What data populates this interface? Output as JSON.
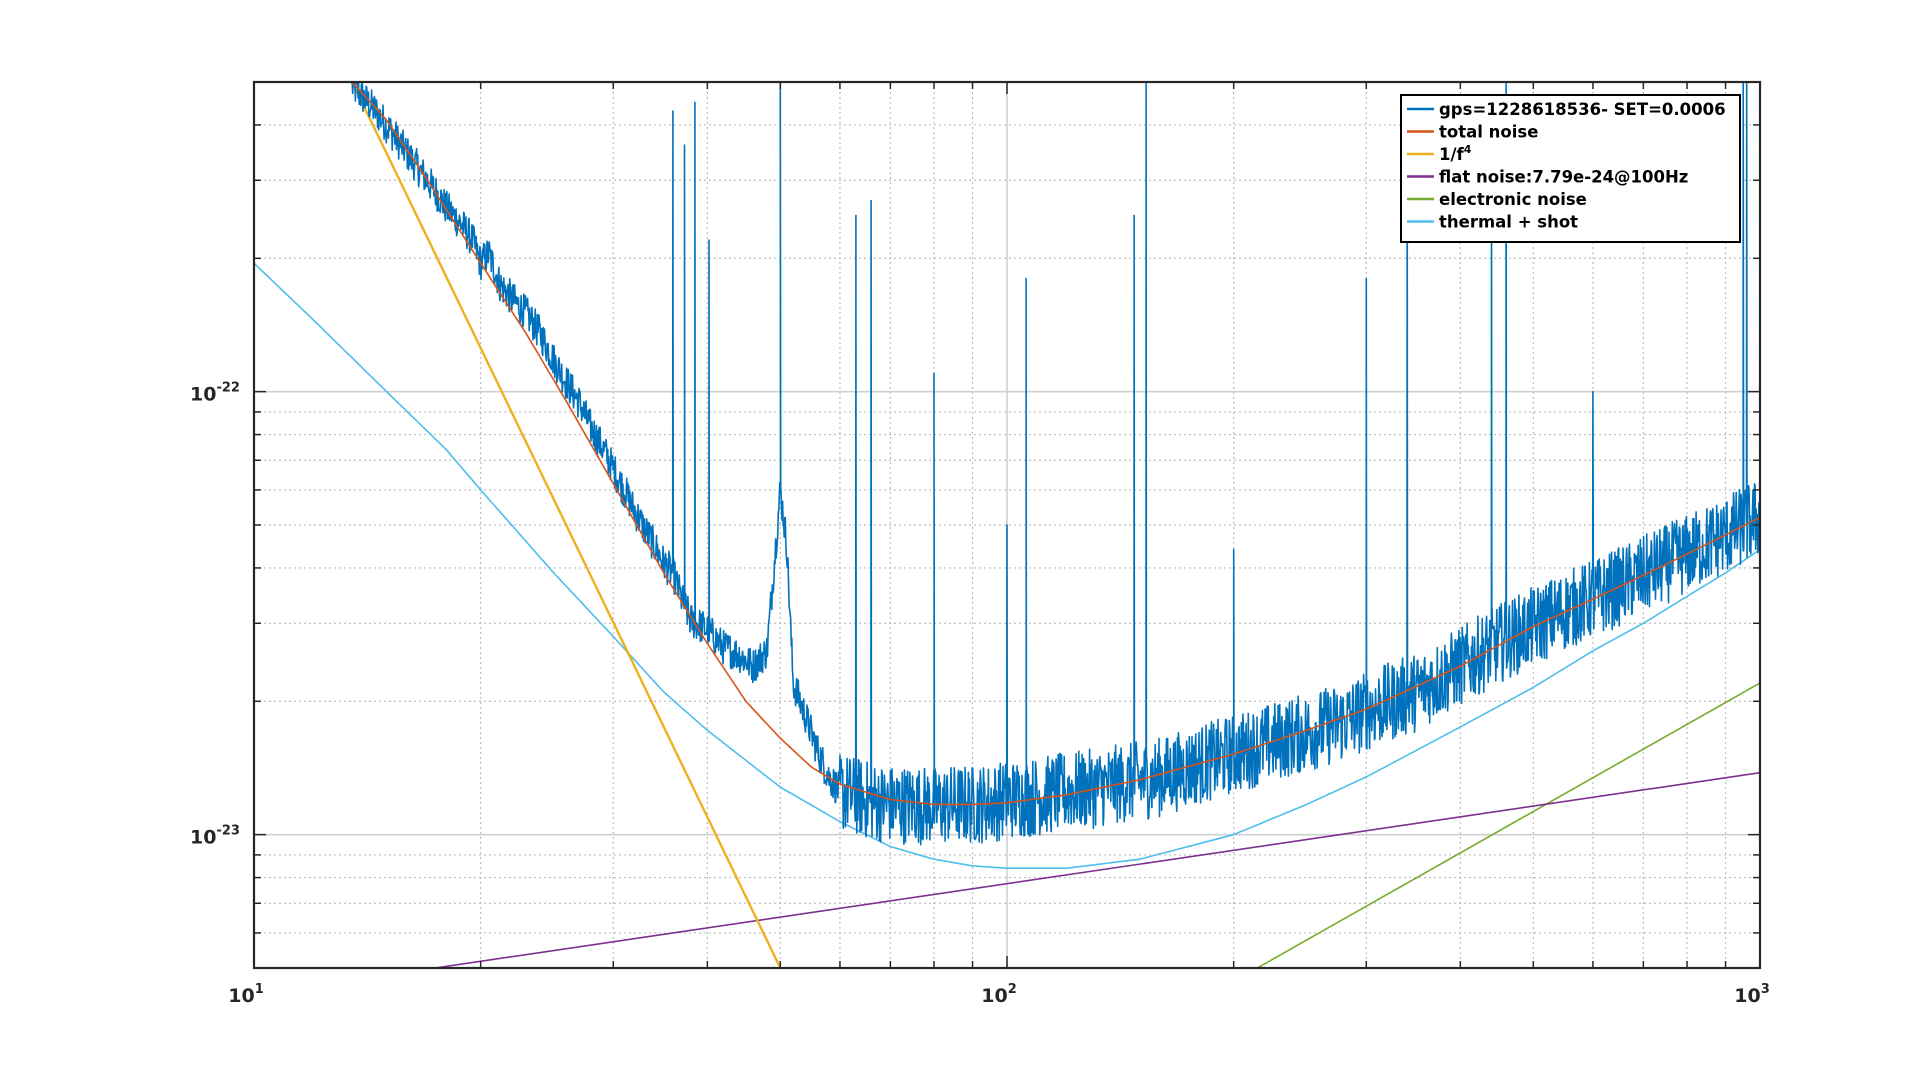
{
  "chart_data": {
    "type": "line",
    "title": "",
    "xlabel": "",
    "ylabel": "",
    "xscale": "log",
    "yscale": "log",
    "xlim": [
      10,
      1000
    ],
    "ylim": [
      5e-24,
      5e-22
    ],
    "grid": true,
    "minor_grid": true,
    "legend_position": "top-right",
    "x_ticks": [
      {
        "base": "10",
        "exp": "1",
        "value": 10
      },
      {
        "base": "10",
        "exp": "2",
        "value": 100
      },
      {
        "base": "10",
        "exp": "3",
        "value": 1000
      }
    ],
    "y_ticks": [
      {
        "base": "10",
        "exp": "-23",
        "value": 1e-23
      },
      {
        "base": "10",
        "exp": "-22",
        "value": 1e-22
      }
    ],
    "legend": [
      {
        "label": "gps=1228618536- SET=0.0006",
        "sup": "",
        "color": "#0072BD"
      },
      {
        "label": "total noise",
        "sup": "",
        "color": "#D95319"
      },
      {
        "label": "1/f",
        "sup": "4",
        "color": "#EDB120"
      },
      {
        "label": "flat noise:7.79e-24@100Hz",
        "sup": "",
        "color": "#7E2F8E"
      },
      {
        "label": "electronic noise",
        "sup": "",
        "color": "#77AC30"
      },
      {
        "label": "thermal + shot",
        "sup": "",
        "color": "#4DBEEE"
      }
    ],
    "series": [
      {
        "name": "gps=1228618536- SET=0.0006",
        "color": "#0072BD",
        "kind": "measured",
        "x": [
          13.5,
          14.5,
          15.5,
          16.5,
          17.5,
          18.0,
          18.8,
          19.5,
          20.0,
          20.5,
          21.2,
          22.0,
          23.0,
          24.0,
          25.0,
          26.0,
          27.0,
          28.0,
          29.0,
          30.0,
          31.0,
          32.0,
          33.0,
          34.0,
          35.0,
          36.0,
          37.0,
          38.0,
          40.0,
          42.0,
          44.0,
          46.0,
          48.0,
          50.0,
          51.0,
          52.0,
          54.0,
          56.0,
          58.0,
          60.0,
          63.0,
          66.0,
          70.0,
          75.0,
          80.0,
          85.0,
          90.0,
          95.0,
          100.0,
          110.0,
          120.0,
          130.0,
          140.0,
          150.0,
          160.0,
          175.0,
          190.0,
          200.0,
          220.0,
          250.0,
          280.0,
          300.0,
          350.0,
          400.0,
          450.0,
          500.0,
          550.0,
          600.0,
          700.0,
          800.0,
          900.0,
          1000.0
        ],
        "y": [
          4.9e-22,
          4.3e-22,
          3.7e-22,
          3.2e-22,
          2.8e-22,
          2.6e-22,
          2.4e-22,
          2.2e-22,
          1.95e-22,
          2.05e-22,
          1.75e-22,
          1.62e-22,
          1.5e-22,
          1.35e-22,
          1.18e-22,
          1.05e-22,
          9.5e-23,
          8.3e-23,
          7.5e-23,
          6.7e-23,
          6e-23,
          5.4e-23,
          4.9e-23,
          4.5e-23,
          4.1e-23,
          3.9e-23,
          3.4e-23,
          3.05e-23,
          2.9e-23,
          2.65e-23,
          2.55e-23,
          2.4e-23,
          2.6e-23,
          6e-23,
          4.5e-23,
          2.2e-23,
          1.85e-23,
          1.55e-23,
          1.35e-23,
          1.25e-23,
          1.22e-23,
          1.19e-23,
          1.17e-23,
          1.17e-23,
          1.16e-23,
          1.17e-23,
          1.17e-23,
          1.18e-23,
          1.2e-23,
          1.22e-23,
          1.25e-23,
          1.27e-23,
          1.3e-23,
          1.32e-23,
          1.35e-23,
          1.42e-23,
          1.48e-23,
          1.52e-23,
          1.6e-23,
          1.7e-23,
          1.8e-23,
          1.9e-23,
          2.1e-23,
          2.4e-23,
          2.7e-23,
          2.95e-23,
          3.2e-23,
          3.4e-23,
          3.85e-23,
          4.3e-23,
          4.75e-23,
          5.2e-23
        ],
        "spikes": [
          {
            "x": 36.0,
            "y": 4.3e-22
          },
          {
            "x": 37.3,
            "y": 3.6e-22
          },
          {
            "x": 38.5,
            "y": 4.5e-22
          },
          {
            "x": 40.2,
            "y": 2.2e-22
          },
          {
            "x": 50.0,
            "y": 5e-22
          },
          {
            "x": 63.0,
            "y": 2.5e-22
          },
          {
            "x": 66.0,
            "y": 2.7e-22
          },
          {
            "x": 80.0,
            "y": 1.1e-22
          },
          {
            "x": 100.0,
            "y": 5e-23
          },
          {
            "x": 106.0,
            "y": 1.8e-22
          },
          {
            "x": 147.5,
            "y": 2.5e-22
          },
          {
            "x": 153.0,
            "y": 5e-22
          },
          {
            "x": 200.0,
            "y": 4.4e-23
          },
          {
            "x": 300.0,
            "y": 1.8e-22
          },
          {
            "x": 340.0,
            "y": 4.3e-22
          },
          {
            "x": 440.0,
            "y": 3.5e-22
          },
          {
            "x": 460.0,
            "y": 5e-22
          },
          {
            "x": 600.0,
            "y": 1e-22
          },
          {
            "x": 950.0,
            "y": 5e-22
          },
          {
            "x": 960.0,
            "y": 5e-22
          }
        ]
      },
      {
        "name": "total noise",
        "color": "#D95319",
        "kind": "model",
        "x": [
          13.5,
          15.0,
          17.0,
          20.0,
          23.0,
          26.0,
          30.0,
          35.0,
          40.0,
          45.0,
          50.0,
          55.0,
          60.0,
          70.0,
          80.0,
          90.0,
          100.0,
          120.0,
          150.0,
          200.0,
          250.0,
          300.0,
          400.0,
          500.0,
          600.0,
          700.0,
          800.0,
          900.0,
          1000.0
        ],
        "y": [
          5e-22,
          4.1e-22,
          3e-22,
          1.95e-22,
          1.35e-22,
          9.5e-23,
          6.2e-23,
          3.9e-23,
          2.7e-23,
          2e-23,
          1.65e-23,
          1.42e-23,
          1.3e-23,
          1.2e-23,
          1.17e-23,
          1.17e-23,
          1.18e-23,
          1.23e-23,
          1.33e-23,
          1.52e-23,
          1.72e-23,
          1.92e-23,
          2.4e-23,
          2.95e-23,
          3.4e-23,
          3.85e-23,
          4.3e-23,
          4.75e-23,
          5.2e-23
        ]
      },
      {
        "name": "1/f^4",
        "color": "#EDB120",
        "kind": "model",
        "x": [
          13.5,
          50.0
        ],
        "y": [
          5e-22,
          5e-24
        ]
      },
      {
        "name": "flat noise:7.79e-24@100Hz",
        "color": "#7E2F8E",
        "kind": "model",
        "x": [
          17.4,
          1000.0
        ],
        "y": [
          5e-24,
          1.38e-23
        ]
      },
      {
        "name": "electronic noise",
        "color": "#77AC30",
        "kind": "model",
        "x": [
          215.0,
          1000.0
        ],
        "y": [
          5e-24,
          2.2e-23
        ]
      },
      {
        "name": "thermal + shot",
        "color": "#4DBEEE",
        "kind": "model",
        "x": [
          10.0,
          12.0,
          15.0,
          18.0,
          20.0,
          25.0,
          30.0,
          35.0,
          40.0,
          50.0,
          60.0,
          70.0,
          80.0,
          90.0,
          100.0,
          120.0,
          150.0,
          200.0,
          250.0,
          300.0,
          400.0,
          500.0,
          600.0,
          700.0,
          800.0,
          900.0,
          1000.0
        ],
        "y": [
          1.95e-22,
          1.45e-22,
          1e-22,
          7.4e-23,
          6e-23,
          3.9e-23,
          2.8e-23,
          2.1e-23,
          1.72e-23,
          1.28e-23,
          1.07e-23,
          9.4e-24,
          8.8e-24,
          8.5e-24,
          8.4e-24,
          8.4e-24,
          8.8e-24,
          1e-23,
          1.17e-23,
          1.35e-23,
          1.75e-23,
          2.15e-23,
          2.6e-23,
          3e-23,
          3.45e-23,
          3.9e-23,
          4.4e-23
        ]
      }
    ]
  }
}
